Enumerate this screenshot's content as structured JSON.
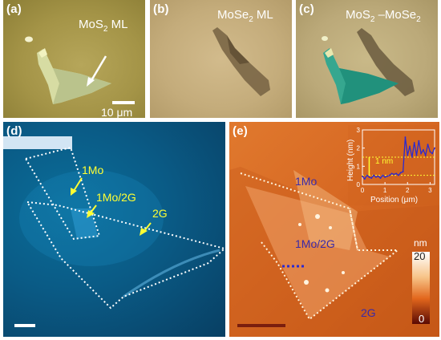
{
  "panels": {
    "a": {
      "label": "(a)",
      "title_main": "MoS",
      "title_sub": "2",
      "title_tail": " ML",
      "scale_bar": "10 μm",
      "colors": {
        "background": "#a49447",
        "flake": "#d8e0a8"
      }
    },
    "b": {
      "label": "(b)",
      "title_main": "MoSe",
      "title_sub": "2",
      "title_tail": " ML",
      "colors": {
        "background": "#c4ac7b",
        "flake": "#6e5a40"
      }
    },
    "c": {
      "label": "(c)",
      "title_main": "MoS",
      "title_sub": "2",
      "title_mid": " –MoSe",
      "title_sub2": "2",
      "colors": {
        "background": "#bba979",
        "flake": "#2aa58a"
      }
    },
    "d": {
      "label": "(d)",
      "annotations": [
        "1Mo",
        "1Mo/2G",
        "2G"
      ],
      "colors": {
        "background": "#0a5b86",
        "annotation": "#ffff33"
      }
    },
    "e": {
      "label": "(e)",
      "annotations": [
        "1Mo",
        "1Mo/2G",
        "2G"
      ],
      "colorbar": {
        "label": "nm",
        "max": "20",
        "min": "0"
      },
      "inset": {
        "ylabel": "Height (nm)",
        "xlabel": "Position (μm)",
        "step_label": "1 nm",
        "y_ticks": [
          "0",
          "1",
          "2",
          "3"
        ],
        "x_ticks": [
          "0",
          "1",
          "2",
          "3"
        ]
      },
      "colors": {
        "background": "#d86a24",
        "annotation": "#3a2aa8",
        "profile": "#2a2ad0"
      }
    }
  },
  "chart_data": {
    "type": "line",
    "title": "",
    "xlabel": "Position (μm)",
    "ylabel": "Height (nm)",
    "xlim": [
      0,
      3.2
    ],
    "ylim": [
      0,
      3
    ],
    "grid": false,
    "series": [
      {
        "x": [
          0.0,
          0.1,
          0.2,
          0.3,
          0.4,
          0.5,
          0.6,
          0.7,
          0.8,
          0.9,
          1.0,
          1.1,
          1.2,
          1.3,
          1.4,
          1.5,
          1.6,
          1.7,
          1.8,
          1.9,
          2.0,
          2.1,
          2.2,
          2.3,
          2.4,
          2.5,
          2.6,
          2.7,
          2.8,
          2.9,
          3.0,
          3.1,
          3.2
        ],
        "y": [
          0.45,
          0.3,
          0.5,
          0.4,
          0.35,
          0.5,
          0.4,
          0.45,
          0.35,
          0.5,
          0.4,
          0.45,
          0.5,
          0.6,
          0.55,
          0.6,
          0.5,
          0.65,
          0.7,
          2.6,
          1.6,
          2.1,
          1.5,
          2.3,
          1.6,
          2.4,
          1.7,
          1.9,
          1.6,
          2.2,
          1.8,
          1.7,
          2.0
        ]
      }
    ],
    "reference_lines": [
      0.5,
      1.5
    ],
    "step_annotation": "1 nm"
  }
}
